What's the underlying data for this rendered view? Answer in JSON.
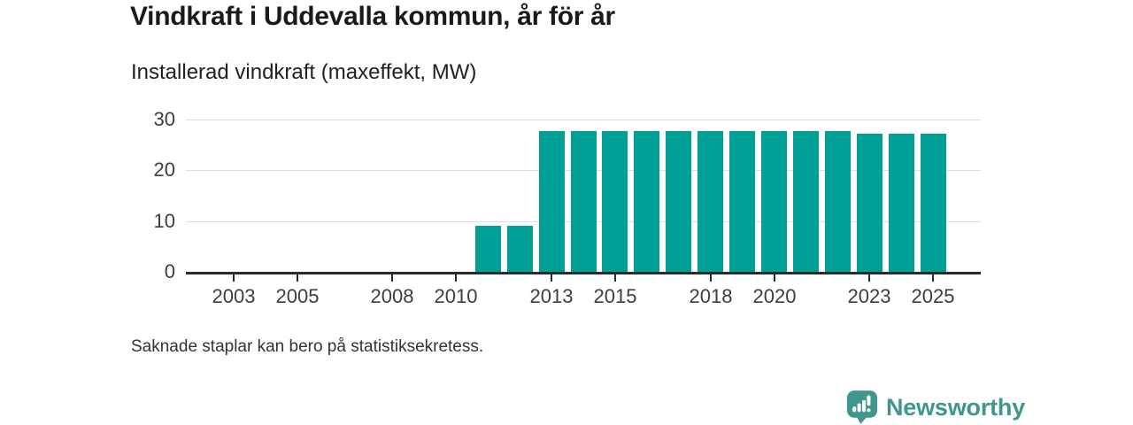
{
  "header": {
    "title": "Vindkraft i Uddevalla kommun, år för år",
    "subtitle": "Installerad vindkraft (maxeffekt, MW)"
  },
  "footnote": "Saknade staplar kan bero på statistiksekretess.",
  "branding": {
    "name": "Newsworthy",
    "icon": "newsworthy-bubble-chart-icon",
    "color": "#3f968b"
  },
  "chart_data": {
    "type": "bar",
    "title": "Vindkraft i Uddevalla kommun, år för år",
    "subtitle": "Installerad vindkraft (maxeffekt, MW)",
    "ylabel": "Installerad vindkraft (maxeffekt, MW)",
    "x_domain": [
      2002,
      2026
    ],
    "x_ticks": [
      2003,
      2005,
      2008,
      2010,
      2013,
      2015,
      2018,
      2020,
      2023,
      2025
    ],
    "y_ticks": [
      0,
      10,
      20,
      30
    ],
    "ylim": [
      0,
      30
    ],
    "grid": "horizontal",
    "legend": "none",
    "bar_color": "#00a096",
    "axis_color": "#2b2b2b",
    "grid_color": "#dddddd",
    "label_color": "#3d3d3d",
    "series": [
      {
        "name": "Installerad vindkraft (maxeffekt, MW)",
        "data": [
          {
            "x": 2011,
            "y": 9
          },
          {
            "x": 2012,
            "y": 9
          },
          {
            "x": 2013,
            "y": 27.7
          },
          {
            "x": 2014,
            "y": 27.7
          },
          {
            "x": 2015,
            "y": 27.7
          },
          {
            "x": 2016,
            "y": 27.7
          },
          {
            "x": 2017,
            "y": 27.7
          },
          {
            "x": 2018,
            "y": 27.7
          },
          {
            "x": 2019,
            "y": 27.7
          },
          {
            "x": 2020,
            "y": 27.7
          },
          {
            "x": 2021,
            "y": 27.7
          },
          {
            "x": 2022,
            "y": 27.7
          },
          {
            "x": 2023,
            "y": 27.3
          },
          {
            "x": 2024,
            "y": 27.3
          },
          {
            "x": 2025,
            "y": 27.3
          }
        ]
      }
    ]
  }
}
